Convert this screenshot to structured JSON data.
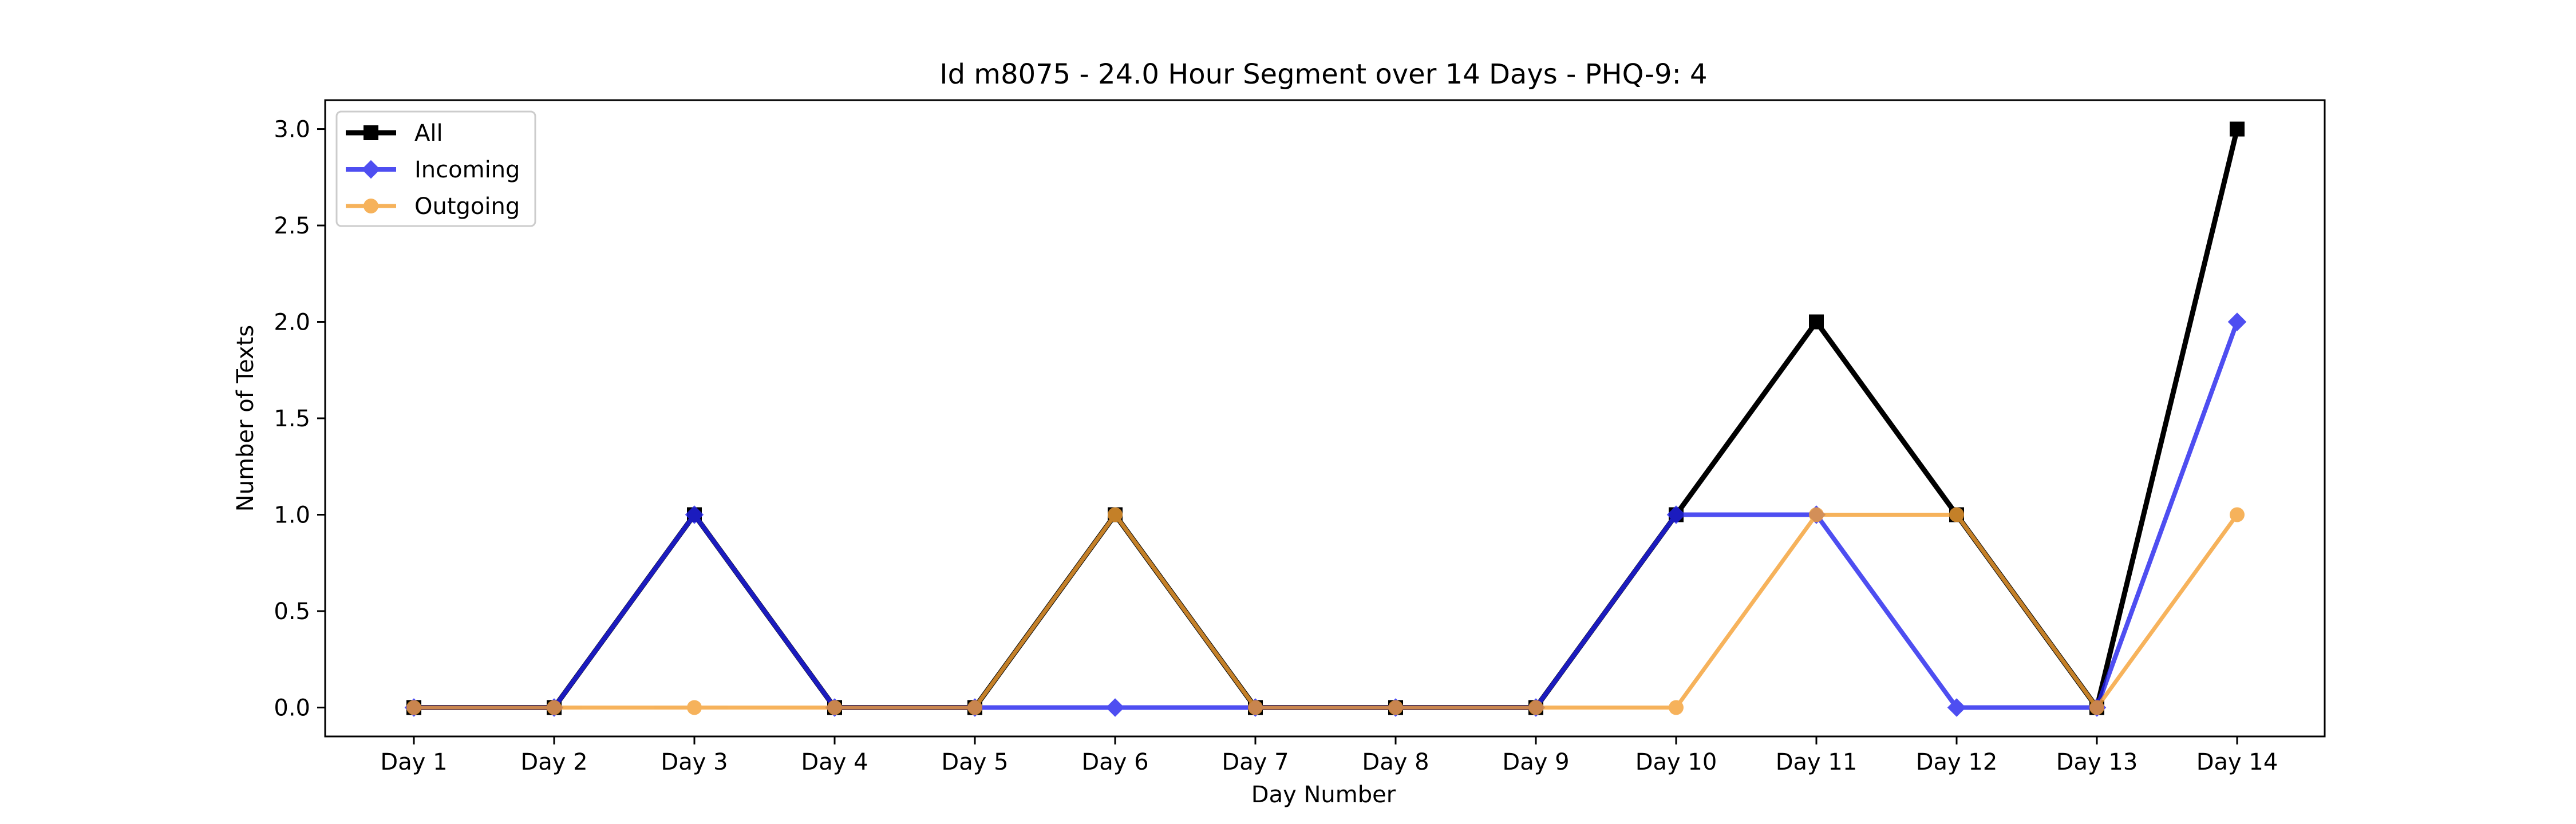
{
  "chart_data": {
    "type": "line",
    "title": "Id m8075 - 24.0 Hour Segment over 14 Days - PHQ-9: 4",
    "xlabel": "Day Number",
    "ylabel": "Number of Texts",
    "categories": [
      "Day 1",
      "Day 2",
      "Day 3",
      "Day 4",
      "Day 5",
      "Day 6",
      "Day 7",
      "Day 8",
      "Day 9",
      "Day 10",
      "Day 11",
      "Day 12",
      "Day 13",
      "Day 14"
    ],
    "ylim": [
      -0.15,
      3.15
    ],
    "yticks": [
      "0.0",
      "0.5",
      "1.0",
      "1.5",
      "2.0",
      "2.5",
      "3.0"
    ],
    "ytick_values": [
      0,
      0.5,
      1.0,
      1.5,
      2.0,
      2.5,
      3.0
    ],
    "grid": false,
    "legend_position": "top-left",
    "series": [
      {
        "name": "All",
        "color": "#000000",
        "marker": "square",
        "values": [
          0,
          0,
          1,
          0,
          0,
          1,
          0,
          0,
          0,
          1,
          2,
          1,
          0,
          3
        ]
      },
      {
        "name": "Incoming",
        "color": "#2222ee",
        "marker": "diamond",
        "values": [
          0,
          0,
          1,
          0,
          0,
          0,
          0,
          0,
          0,
          1,
          1,
          0,
          0,
          2
        ]
      },
      {
        "name": "Outgoing",
        "color": "#f5a033",
        "marker": "circle",
        "values": [
          0,
          0,
          0,
          0,
          0,
          1,
          0,
          0,
          0,
          0,
          1,
          1,
          0,
          1
        ]
      }
    ]
  }
}
